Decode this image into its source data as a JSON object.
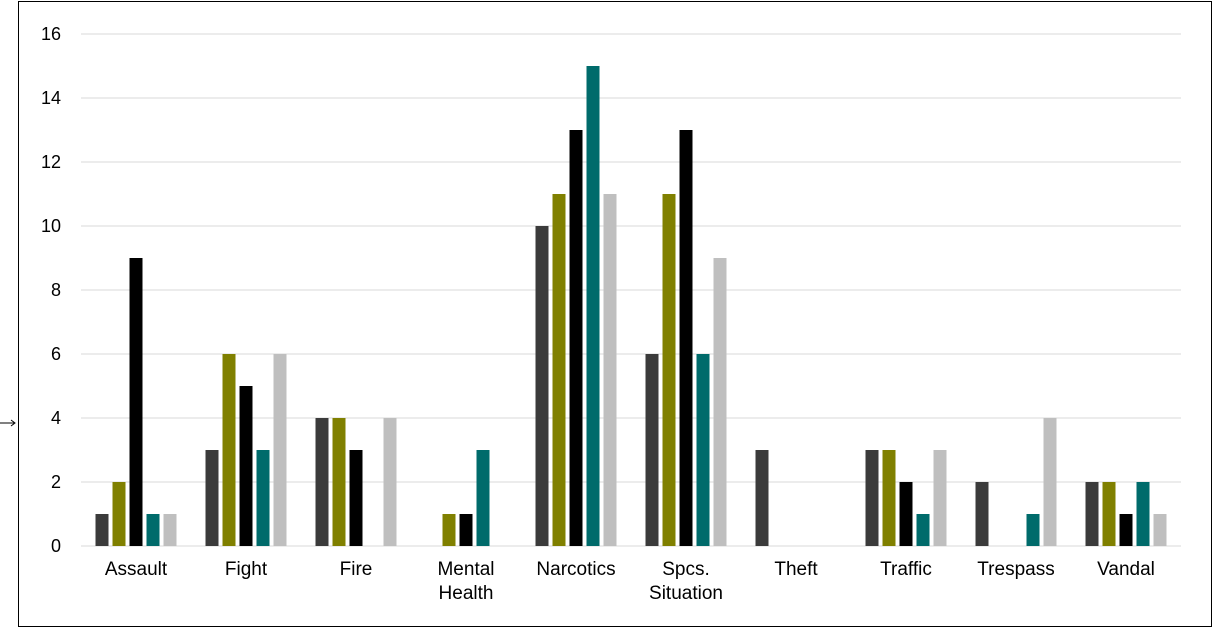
{
  "chart_data": {
    "type": "bar",
    "title": "",
    "xlabel": "",
    "ylabel": "",
    "ylim": [
      0,
      16
    ],
    "yticks": [
      0,
      2,
      4,
      6,
      8,
      10,
      12,
      14,
      16
    ],
    "grid": true,
    "legend": "none",
    "categories": [
      [
        "Assault"
      ],
      [
        "Fight"
      ],
      [
        "Fire"
      ],
      [
        "Mental",
        "Health"
      ],
      [
        "Narcotics"
      ],
      [
        "Spcs.",
        "Situation"
      ],
      [
        "Theft"
      ],
      [
        "Traffic"
      ],
      [
        "Trespass"
      ],
      [
        "Vandal"
      ]
    ],
    "series": [
      {
        "color": "#3b3b3b",
        "values": [
          1,
          3,
          4,
          0,
          10,
          6,
          3,
          3,
          2,
          2
        ]
      },
      {
        "color": "#808000",
        "values": [
          2,
          6,
          4,
          1,
          11,
          11,
          0,
          3,
          0,
          2
        ]
      },
      {
        "color": "#000000",
        "values": [
          9,
          5,
          3,
          1,
          13,
          13,
          0,
          2,
          0,
          1
        ]
      },
      {
        "color": "#006b6b",
        "values": [
          1,
          3,
          0,
          3,
          15,
          6,
          0,
          1,
          1,
          2
        ]
      },
      {
        "color": "#bfbfbf",
        "values": [
          1,
          6,
          4,
          0,
          11,
          9,
          0,
          3,
          4,
          1
        ]
      }
    ]
  }
}
